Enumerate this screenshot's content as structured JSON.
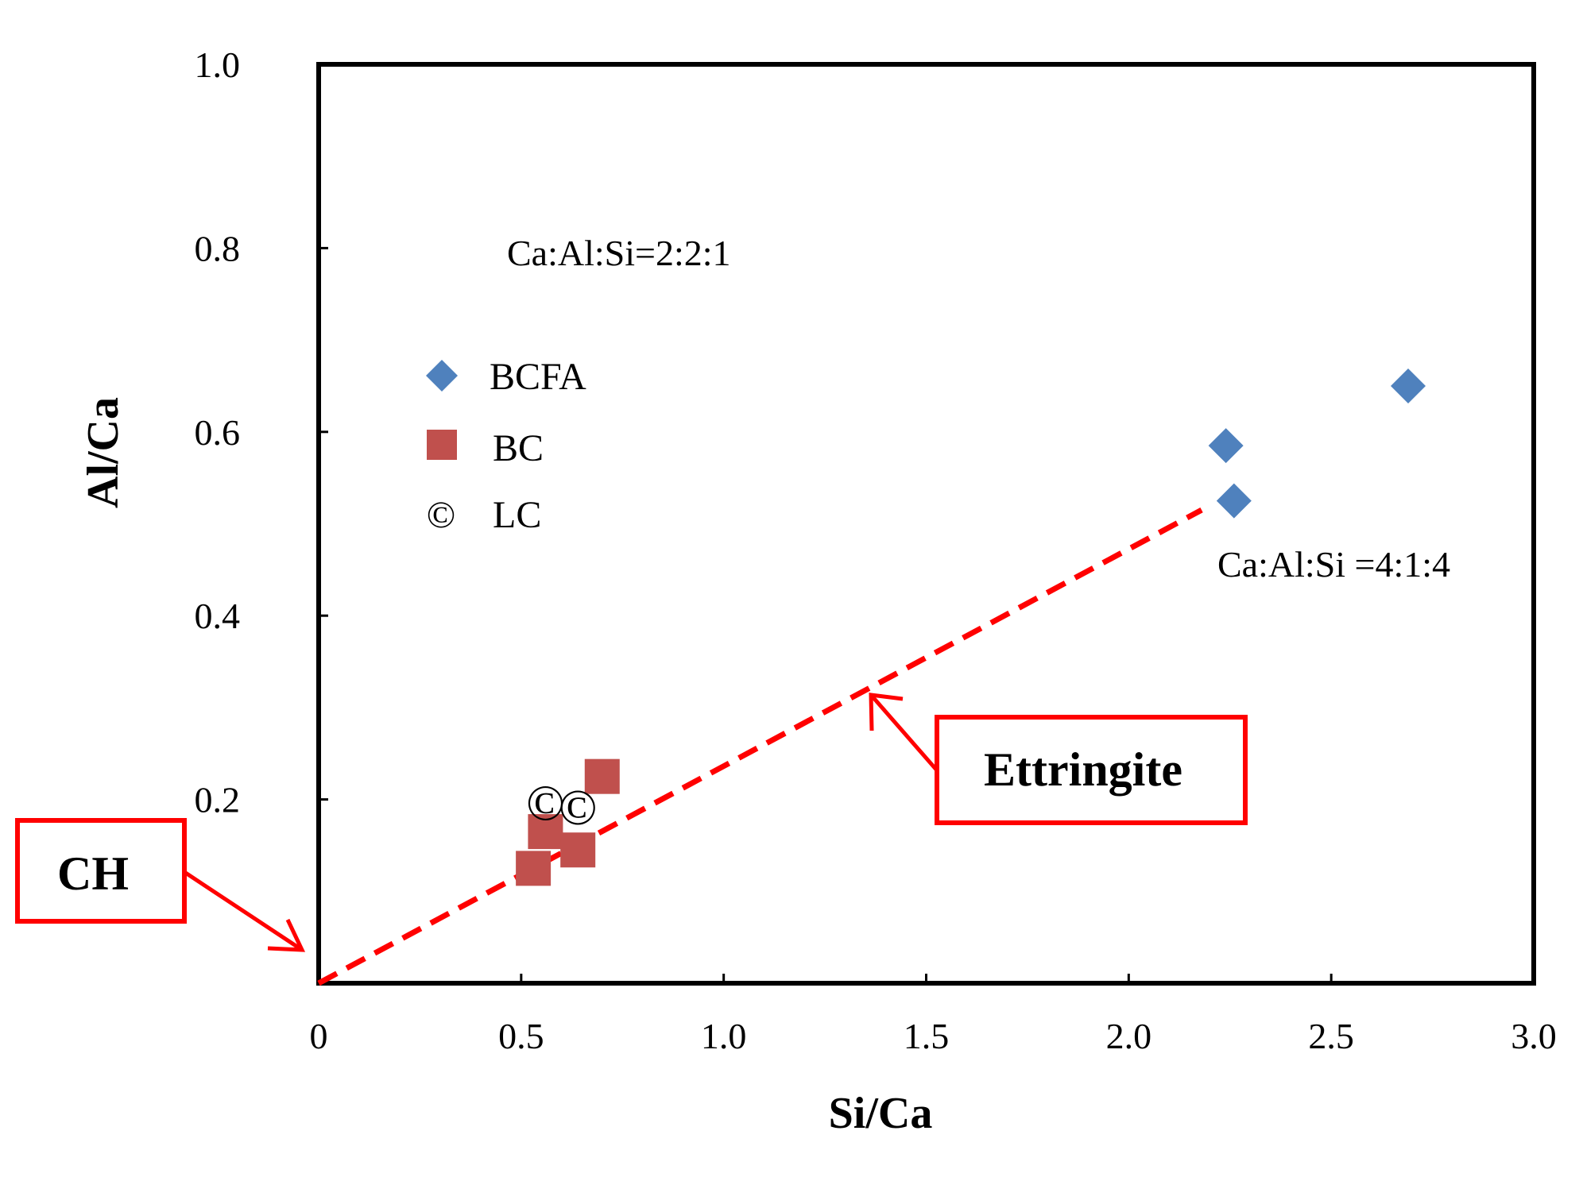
{
  "chart_data": {
    "type": "scatter",
    "title": "",
    "xlabel": "Si/Ca",
    "ylabel": "Al/Ca",
    "xlim": [
      0,
      3.0
    ],
    "ylim": [
      0,
      1.0
    ],
    "x_ticks": [
      0,
      0.5,
      1.0,
      1.5,
      2.0,
      2.5,
      3.0
    ],
    "x_tick_labels": [
      "0",
      "0.5",
      "1.0",
      "1.5",
      "2.0",
      "2.5",
      "3.0"
    ],
    "y_ticks": [
      0.2,
      0.4,
      0.6,
      0.8,
      1.0
    ],
    "y_tick_labels": [
      "0.2",
      "0.4",
      "0.6",
      "0.8",
      "1.0"
    ],
    "grid": false,
    "legend_position": "upper-left",
    "series": [
      {
        "name": "BCFA",
        "marker": "diamond",
        "color": "#4F81BD",
        "points": [
          [
            2.24,
            0.585
          ],
          [
            2.26,
            0.525
          ],
          [
            2.69,
            0.65
          ]
        ]
      },
      {
        "name": "BC",
        "marker": "square",
        "color": "#C0504D",
        "points": [
          [
            0.53,
            0.125
          ],
          [
            0.56,
            0.165
          ],
          [
            0.64,
            0.145
          ],
          [
            0.7,
            0.225
          ]
        ]
      },
      {
        "name": "LC",
        "marker": "copyright",
        "symbol": "©",
        "color": "#000000",
        "points": [
          [
            0.56,
            0.195
          ],
          [
            0.64,
            0.19
          ]
        ]
      }
    ],
    "reference_line": {
      "name": "Ettringite",
      "color": "#FF0000",
      "style": "dashed",
      "from": [
        0,
        0
      ],
      "to": [
        2.18,
        0.515
      ]
    },
    "annotations": [
      {
        "text": "Ca:Al:Si=2:2:1",
        "x": 0.47,
        "y": 0.78
      },
      {
        "text": "Ca:Al:Si =4:1:4",
        "x": 2.22,
        "y": 0.445
      }
    ],
    "callouts": [
      {
        "label": "CH",
        "points_to": [
          0,
          0
        ]
      },
      {
        "label": "Ettringite",
        "points_to": [
          1.35,
          0.31
        ]
      }
    ]
  }
}
